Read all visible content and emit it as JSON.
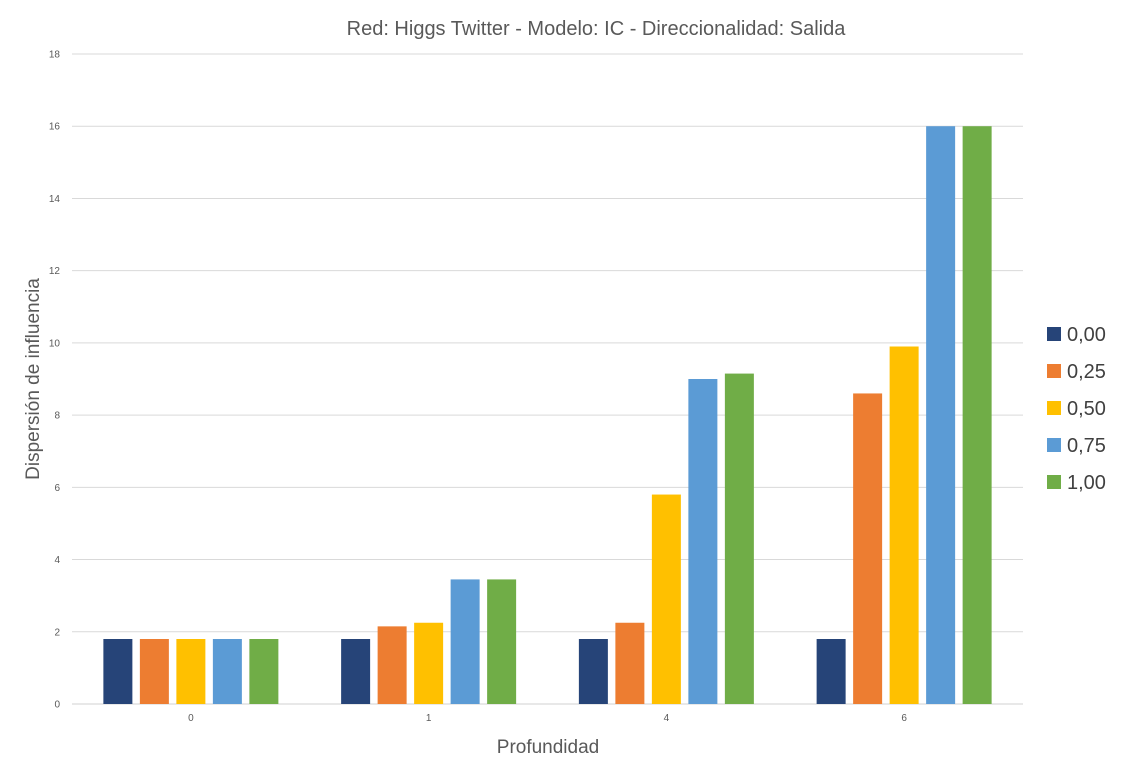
{
  "chart_data": {
    "type": "bar",
    "title": "Red: Higgs Twitter - Modelo: IC - Direccionalidad: Salida",
    "xlabel": "Profundidad",
    "ylabel": "Dispersión de influencia",
    "categories": [
      "0",
      "1",
      "4",
      "6"
    ],
    "ylim": [
      0,
      18
    ],
    "yticks": [
      "0",
      "2",
      "4",
      "6",
      "8",
      "10",
      "12",
      "14",
      "16",
      "18"
    ],
    "grid": true,
    "legend_position": "right",
    "series": [
      {
        "name": "0,00",
        "color": "#264478",
        "values": [
          1.8,
          1.8,
          1.8,
          1.8
        ]
      },
      {
        "name": "0,25",
        "color": "#ED7D31",
        "values": [
          1.8,
          2.15,
          2.25,
          8.6
        ]
      },
      {
        "name": "0,50",
        "color": "#FFC000",
        "values": [
          1.8,
          2.25,
          5.8,
          9.9
        ]
      },
      {
        "name": "0,75",
        "color": "#5B9BD5",
        "values": [
          1.8,
          3.45,
          9.0,
          16.0
        ]
      },
      {
        "name": "1,00",
        "color": "#70AD47",
        "values": [
          1.8,
          3.45,
          9.15,
          16.0
        ]
      }
    ]
  }
}
